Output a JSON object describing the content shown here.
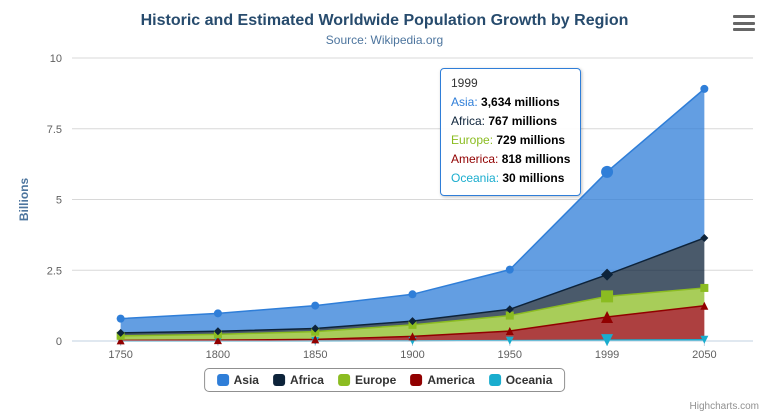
{
  "header": {
    "title": "Historic and Estimated Worldwide Population Growth by Region",
    "subtitle": "Source: Wikipedia.org"
  },
  "chart_data": {
    "type": "area",
    "stacking": "normal",
    "title": "Historic and Estimated Worldwide Population Growth by Region",
    "subtitle": "Source: Wikipedia.org",
    "categories": [
      "1750",
      "1800",
      "1850",
      "1900",
      "1950",
      "1999",
      "2050"
    ],
    "values_unit": "millions",
    "series": [
      {
        "name": "Asia",
        "color": "#2f7ed8",
        "marker": "circle",
        "values": [
          502,
          635,
          809,
          947,
          1402,
          3634,
          5268
        ]
      },
      {
        "name": "Africa",
        "color": "#0d233a",
        "marker": "diamond",
        "values": [
          106,
          107,
          111,
          133,
          221,
          767,
          1766
        ]
      },
      {
        "name": "Europe",
        "color": "#8bbc21",
        "marker": "square",
        "values": [
          163,
          203,
          276,
          408,
          547,
          729,
          628
        ]
      },
      {
        "name": "America",
        "color": "#910000",
        "marker": "triangle",
        "values": [
          18,
          31,
          54,
          156,
          339,
          818,
          1201
        ]
      },
      {
        "name": "Oceania",
        "color": "#1aadce",
        "marker": "triangle-down",
        "values": [
          2,
          2,
          2,
          6,
          13,
          30,
          46
        ]
      }
    ],
    "xlabel": "",
    "ylabel": "Billions",
    "ylim": [
      0,
      10
    ],
    "yticks": [
      0,
      2.5,
      5,
      7.5,
      10
    ],
    "grid": true,
    "legend_position": "bottom",
    "hover_index": 5
  },
  "tooltip": {
    "header": "1999",
    "border_color": "#2f7ed8",
    "rows": [
      {
        "name": "Asia",
        "value": "3,634 millions",
        "color": "#2f7ed8"
      },
      {
        "name": "Africa",
        "value": "767 millions",
        "color": "#0d233a"
      },
      {
        "name": "Europe",
        "value": "729 millions",
        "color": "#8bbc21"
      },
      {
        "name": "America",
        "value": "818 millions",
        "color": "#910000"
      },
      {
        "name": "Oceania",
        "value": "30 millions",
        "color": "#1aadce"
      }
    ]
  },
  "credits": {
    "label": "Highcharts.com"
  }
}
